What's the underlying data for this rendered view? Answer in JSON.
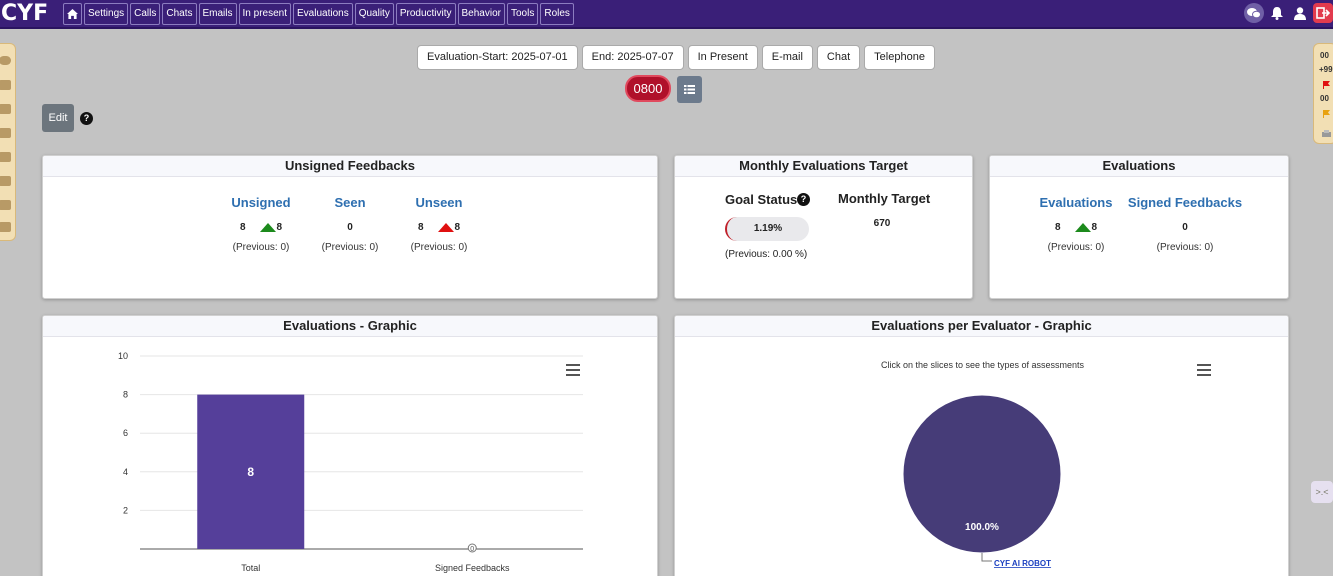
{
  "app": {
    "logo": "CYF"
  },
  "nav": {
    "items": [
      "Settings",
      "Calls",
      "Chats",
      "Emails",
      "In present",
      "Evaluations",
      "Quality",
      "Productivity",
      "Behavior",
      "Tools",
      "Roles"
    ]
  },
  "right_panel": {
    "line1": "00",
    "line2": "+99",
    "line3": "00"
  },
  "filters": {
    "start": "Evaluation-Start: 2025-07-01",
    "end": "End: 2025-07-07",
    "in_present": "In Present",
    "email": "E-mail",
    "chat": "Chat",
    "telephone": "Telephone"
  },
  "badge": "0800",
  "edit_label": "Edit",
  "help_glyph": "?",
  "unsigned_card": {
    "title": "Unsigned Feedbacks",
    "unsigned": {
      "label": "Unsigned",
      "value": "8",
      "delta": "8",
      "previous": "(Previous: 0)"
    },
    "seen": {
      "label": "Seen",
      "value": "0",
      "previous": "(Previous: 0)"
    },
    "unseen": {
      "label": "Unseen",
      "value": "8",
      "delta": "8",
      "previous": "(Previous: 0)"
    }
  },
  "monthly_card": {
    "title": "Monthly Evaluations Target",
    "goal_label": "Goal Status",
    "goal_value": "1.19%",
    "goal_previous": "(Previous: 0.00 %)",
    "target_label": "Monthly Target",
    "target_value": "670"
  },
  "evaluations_card": {
    "title": "Evaluations",
    "evaluations": {
      "label": "Evaluations",
      "value": "8",
      "delta": "8",
      "previous": "(Previous: 0)"
    },
    "signed": {
      "label": "Signed Feedbacks",
      "value": "0",
      "previous": "(Previous: 0)"
    }
  },
  "bar_card": {
    "title": "Evaluations - Graphic"
  },
  "pie_card": {
    "title": "Evaluations per Evaluator - Graphic",
    "subtitle": "Click on the slices to see the types of assessments"
  },
  "colors": {
    "nav": "#3a1f78",
    "bar": "#553f9a",
    "pie": "#463c78",
    "up": "#1c8a1c",
    "down": "#e01010",
    "badge": "#b0102a"
  },
  "chart_data": [
    {
      "type": "bar",
      "categories": [
        "Total",
        "Signed Feedbacks"
      ],
      "values": [
        8,
        0
      ],
      "data_labels": [
        "8",
        "0"
      ],
      "ylim": [
        0,
        10
      ],
      "yticks": [
        "2",
        "4",
        "6",
        "8",
        "10"
      ],
      "grid": true
    },
    {
      "type": "pie",
      "slices": [
        {
          "label": "CYF AI ROBOT",
          "value": 100.0,
          "data_label": "100.0%"
        }
      ]
    }
  ]
}
